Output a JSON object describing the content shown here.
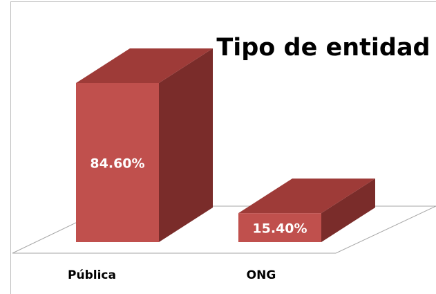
{
  "chart_data": {
    "type": "bar3d",
    "title": "Tipo de entidad",
    "categories": [
      "Pública",
      "ONG"
    ],
    "values": [
      84.6,
      15.4
    ],
    "value_labels": [
      "84.60%",
      "15.40%"
    ],
    "color": "#c0504d"
  }
}
